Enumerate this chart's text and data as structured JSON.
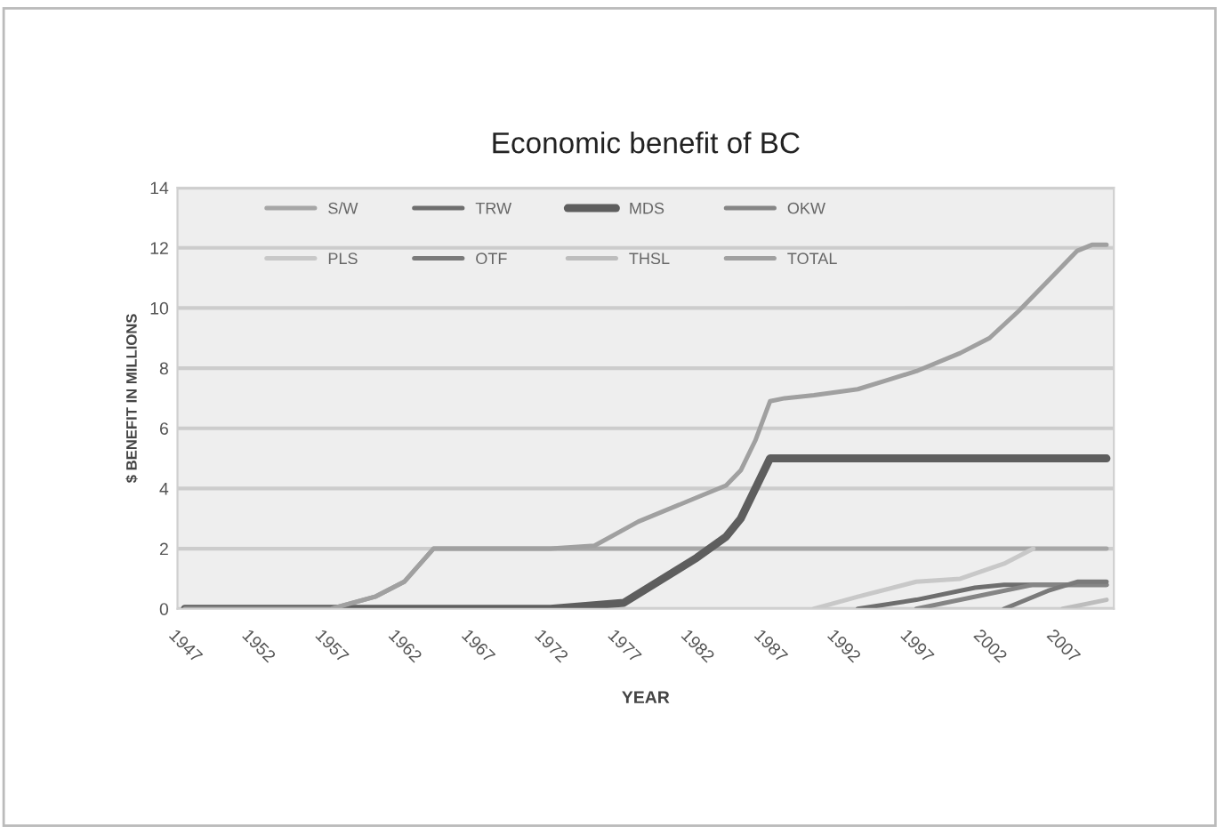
{
  "chart_data": {
    "type": "line",
    "title": "Economic benefit of BC",
    "xlabel": "YEAR",
    "ylabel": "$ BENEFIT IN MILLIONS",
    "xlim": [
      1946.5,
      2010.5
    ],
    "xticks": [
      1947,
      1952,
      1957,
      1962,
      1967,
      1972,
      1977,
      1982,
      1987,
      1992,
      1997,
      2002,
      2007
    ],
    "ylim": [
      0,
      14
    ],
    "yticks": [
      0,
      2,
      4,
      6,
      8,
      10,
      12,
      14
    ],
    "grid": "y",
    "legend": "top",
    "marker": "none",
    "line_style": "solid",
    "series": [
      {
        "name": "S/W",
        "color": "#a6a6a6",
        "x": [
          1947,
          1957,
          1960,
          1962,
          1964,
          2010
        ],
        "values": [
          0,
          0,
          0.4,
          0.9,
          2,
          2
        ]
      },
      {
        "name": "TRW",
        "color": "#6e6e6e",
        "x": [
          1993,
          1997,
          2001,
          2003,
          2010
        ],
        "values": [
          0,
          0.3,
          0.7,
          0.8,
          0.8
        ]
      },
      {
        "name": "MDS",
        "color": "#5e5e5e",
        "x": [
          1947,
          1972,
          1977,
          1982,
          1984,
          1985,
          1987,
          2010
        ],
        "values": [
          0,
          0,
          0.2,
          1.7,
          2.4,
          3.0,
          5,
          5
        ]
      },
      {
        "name": "OKW",
        "color": "#858585",
        "x": [
          1997,
          2002,
          2005,
          2010
        ],
        "values": [
          0,
          0.5,
          0.8,
          0.8
        ]
      },
      {
        "name": "PLS",
        "color": "#c8c8c8",
        "x": [
          1990,
          1993,
          1997,
          2000,
          2003,
          2005
        ],
        "values": [
          0,
          0.4,
          0.9,
          1.0,
          1.5,
          2.0
        ]
      },
      {
        "name": "OTF",
        "color": "#7a7a7a",
        "x": [
          2003,
          2006,
          2008,
          2010
        ],
        "values": [
          0,
          0.6,
          0.9,
          0.9
        ]
      },
      {
        "name": "THSL",
        "color": "#bdbdbd",
        "x": [
          2007,
          2010
        ],
        "values": [
          0,
          0.3
        ]
      },
      {
        "name": "TOTAL",
        "color": "#a0a0a0",
        "x": [
          1947,
          1957,
          1960,
          1962,
          1964,
          1972,
          1975,
          1978,
          1982,
          1984,
          1985,
          1986,
          1987,
          1988,
          1990,
          1993,
          1995,
          1997,
          2000,
          2002,
          2004,
          2006,
          2008,
          2009,
          2010
        ],
        "values": [
          0,
          0,
          0.4,
          0.9,
          2,
          2,
          2.1,
          2.9,
          3.7,
          4.1,
          4.6,
          5.6,
          6.9,
          7.0,
          7.1,
          7.3,
          7.6,
          7.9,
          8.5,
          9.0,
          9.9,
          10.9,
          11.9,
          12.1,
          12.1
        ]
      }
    ]
  }
}
